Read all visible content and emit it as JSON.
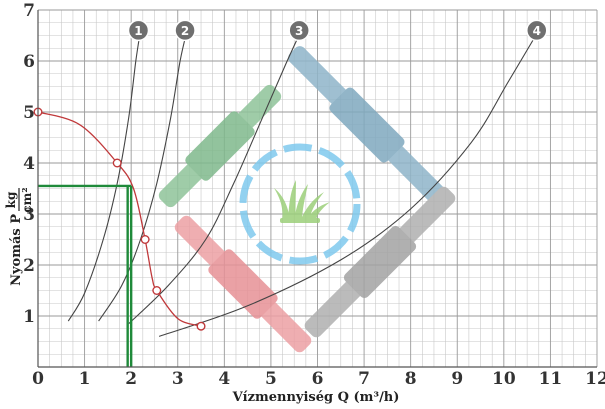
{
  "chart_data": {
    "type": "line",
    "xlabel": "Vízmennyiség  Q (m³/h)",
    "ylabel": "Nyomás  P",
    "ylabel_fraction": {
      "numerator": "kg",
      "denominator": "cm²"
    },
    "xlim": [
      0,
      12
    ],
    "ylim": [
      0,
      7
    ],
    "x_ticks": [
      0,
      1,
      2,
      3,
      4,
      5,
      6,
      7,
      8,
      9,
      10,
      11,
      12
    ],
    "y_ticks": [
      1,
      2,
      3,
      4,
      5,
      6,
      7
    ],
    "grid": true,
    "series": [
      {
        "name": "1",
        "color": "#444444",
        "points": [
          [
            0.65,
            0.9
          ],
          [
            1.0,
            1.45
          ],
          [
            1.4,
            2.5
          ],
          [
            1.7,
            3.6
          ],
          [
            1.95,
            4.9
          ],
          [
            2.1,
            6.0
          ],
          [
            2.2,
            6.6
          ]
        ]
      },
      {
        "name": "2",
        "color": "#444444",
        "points": [
          [
            1.3,
            0.9
          ],
          [
            1.8,
            1.6
          ],
          [
            2.2,
            2.5
          ],
          [
            2.55,
            3.6
          ],
          [
            2.85,
            4.9
          ],
          [
            3.05,
            6.0
          ],
          [
            3.2,
            6.6
          ]
        ]
      },
      {
        "name": "3",
        "color": "#444444",
        "points": [
          [
            1.95,
            0.85
          ],
          [
            2.8,
            1.6
          ],
          [
            3.6,
            2.5
          ],
          [
            4.2,
            3.6
          ],
          [
            4.8,
            4.85
          ],
          [
            5.3,
            5.9
          ],
          [
            5.65,
            6.6
          ]
        ]
      },
      {
        "name": "4",
        "color": "#444444",
        "points": [
          [
            2.6,
            0.6
          ],
          [
            4.5,
            1.2
          ],
          [
            6.5,
            2.1
          ],
          [
            8.0,
            3.1
          ],
          [
            9.3,
            4.4
          ],
          [
            10.1,
            5.6
          ],
          [
            10.75,
            6.6
          ]
        ]
      }
    ],
    "pump_curve": {
      "color": "#c0393b",
      "points": [
        [
          0,
          5.0
        ],
        [
          0.9,
          4.75
        ],
        [
          1.7,
          4.0
        ],
        [
          2.05,
          3.5
        ],
        [
          2.3,
          2.5
        ],
        [
          2.45,
          1.75
        ],
        [
          2.55,
          1.5
        ],
        [
          3.0,
          0.95
        ],
        [
          3.5,
          0.8
        ]
      ],
      "markers": [
        [
          0,
          5.0
        ],
        [
          1.7,
          4.0
        ],
        [
          2.3,
          2.5
        ],
        [
          2.55,
          1.5
        ],
        [
          3.5,
          0.8
        ]
      ]
    },
    "operating_point": {
      "x": 2.0,
      "y": 3.55,
      "color": "#1f8a3a"
    },
    "decoration": {
      "colors": [
        "#8fc49a",
        "#8fb5c9",
        "#eda0a4",
        "#b0b0b0",
        "#7fc9ee",
        "#9ccf7a"
      ],
      "icon": "sprinkler-grass-icon"
    }
  }
}
